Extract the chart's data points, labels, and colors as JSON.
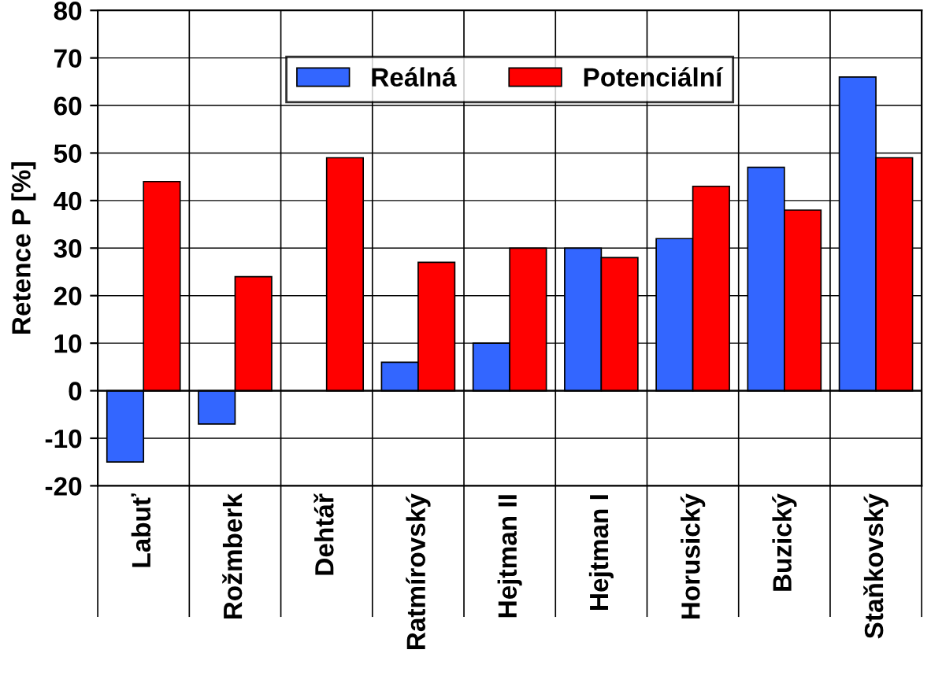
{
  "chart_data": {
    "type": "bar",
    "ylabel": "Retence P [%]",
    "categories": [
      "Labuť",
      "Rožmberk",
      "Dehtář",
      "Ratmírovský",
      "Hejtman II",
      "Hejtman I",
      "Horusický",
      "Buzický",
      "Staňkovský"
    ],
    "series": [
      {
        "name": "Reálná",
        "color": "#3366ff",
        "values": [
          -15,
          -7,
          null,
          6,
          10,
          30,
          32,
          47,
          66
        ]
      },
      {
        "name": "Potenciální",
        "color": "#ff0000",
        "values": [
          44,
          24,
          49,
          27,
          30,
          28,
          43,
          38,
          49
        ]
      }
    ],
    "ylim": [
      -20,
      80
    ],
    "yticks": [
      -20,
      -10,
      0,
      10,
      20,
      30,
      40,
      50,
      60,
      70,
      80
    ],
    "grid": true,
    "legend": "top"
  }
}
